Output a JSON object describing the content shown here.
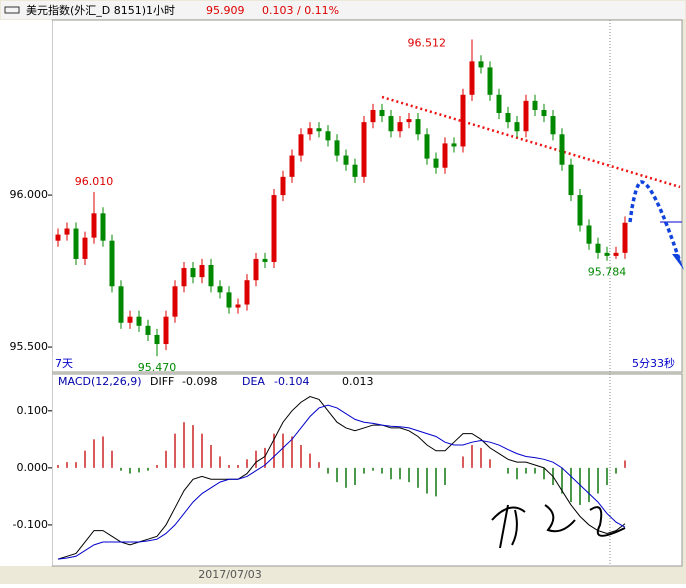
{
  "chart_data": [
    {
      "type": "candlestick",
      "title": "美元指数(外汇_D 8151)1小时",
      "price_label": "95.909",
      "change_label": "0.103 / 0.11%",
      "period_label": "7天",
      "countdown_label": "5分33秒",
      "date_label": "2017/07/03",
      "up_color": "#dd0000",
      "down_color": "#008800",
      "ylim": [
        95.418,
        96.576
      ],
      "yticks": [
        {
          "value": 96.0,
          "label": "96.000"
        },
        {
          "value": 95.5,
          "label": "95.500"
        }
      ],
      "annotations": [
        {
          "value": 96.512,
          "label": "96.512"
        },
        {
          "value": 96.01,
          "label": "96.010"
        },
        {
          "value": 95.47,
          "label": "95.470"
        },
        {
          "value": 95.784,
          "label": "95.784"
        }
      ],
      "open": [
        95.85,
        95.87,
        95.89,
        95.79,
        95.86,
        95.94,
        95.85,
        95.7,
        95.58,
        95.6,
        95.57,
        95.54,
        95.51,
        95.6,
        95.7,
        95.76,
        95.73,
        95.77,
        95.7,
        95.68,
        95.63,
        95.64,
        95.72,
        95.79,
        95.78,
        96.0,
        96.06,
        96.13,
        96.2,
        96.22,
        96.21,
        96.18,
        96.13,
        96.1,
        96.06,
        96.24,
        96.28,
        96.26,
        96.21,
        96.24,
        96.25,
        96.2,
        96.12,
        96.09,
        96.17,
        96.16,
        96.33,
        96.44,
        96.42,
        96.33,
        96.27,
        96.24,
        96.21,
        96.31,
        96.28,
        96.26,
        96.2,
        96.1,
        96.0,
        95.9,
        95.84,
        95.81,
        95.8,
        95.81
      ],
      "high": [
        95.89,
        95.91,
        95.91,
        95.88,
        96.01,
        95.96,
        95.87,
        95.72,
        95.62,
        95.62,
        95.59,
        95.56,
        95.62,
        95.72,
        95.78,
        95.78,
        95.79,
        95.79,
        95.72,
        95.7,
        95.66,
        95.74,
        95.81,
        95.81,
        96.02,
        96.08,
        96.15,
        96.22,
        96.24,
        96.24,
        96.23,
        96.2,
        96.15,
        96.12,
        96.26,
        96.3,
        96.3,
        96.28,
        96.26,
        96.27,
        96.27,
        96.22,
        96.14,
        96.19,
        96.19,
        96.35,
        96.512,
        96.46,
        96.44,
        96.35,
        96.29,
        96.26,
        96.33,
        96.33,
        96.3,
        96.28,
        96.22,
        96.12,
        96.02,
        95.92,
        95.86,
        95.83,
        95.83,
        95.93
      ],
      "low": [
        95.83,
        95.85,
        95.77,
        95.77,
        95.84,
        95.83,
        95.68,
        95.56,
        95.56,
        95.55,
        95.52,
        95.47,
        95.49,
        95.58,
        95.68,
        95.71,
        95.71,
        95.68,
        95.66,
        95.61,
        95.61,
        95.62,
        95.7,
        95.76,
        95.76,
        95.98,
        96.04,
        96.11,
        96.18,
        96.19,
        96.16,
        96.11,
        96.08,
        96.04,
        96.04,
        96.22,
        96.24,
        96.19,
        96.19,
        96.22,
        96.18,
        96.1,
        96.07,
        96.07,
        96.14,
        96.14,
        96.31,
        96.4,
        96.31,
        96.25,
        96.22,
        96.19,
        96.19,
        96.26,
        96.24,
        96.18,
        96.08,
        95.98,
        95.88,
        95.82,
        95.79,
        95.784,
        95.79,
        95.79
      ],
      "close": [
        95.87,
        95.89,
        95.79,
        95.86,
        95.94,
        95.85,
        95.7,
        95.58,
        95.6,
        95.57,
        95.54,
        95.51,
        95.6,
        95.7,
        95.76,
        95.73,
        95.77,
        95.7,
        95.68,
        95.63,
        95.64,
        95.72,
        95.79,
        95.78,
        96.0,
        96.06,
        96.13,
        96.2,
        96.22,
        96.21,
        96.18,
        96.13,
        96.1,
        96.06,
        96.24,
        96.28,
        96.26,
        96.21,
        96.24,
        96.25,
        96.2,
        96.12,
        96.09,
        96.17,
        96.16,
        96.33,
        96.44,
        96.42,
        96.33,
        96.27,
        96.24,
        96.21,
        96.31,
        96.28,
        96.26,
        96.2,
        96.1,
        96.0,
        95.9,
        95.84,
        95.81,
        95.8,
        95.81,
        95.909
      ]
    },
    {
      "type": "macd",
      "title": "MACD(12,26,9)",
      "ylim": [
        -0.172,
        0.161
      ],
      "yticks": [
        {
          "value": 0.1,
          "label": "0.100"
        },
        {
          "value": 0.0,
          "label": "0.000"
        },
        {
          "value": -0.1,
          "label": "-0.100"
        }
      ],
      "histogram": {
        "name": "MACD",
        "value_label": "0.013",
        "up_color": "#cc2222",
        "down_color": "#117711",
        "values": [
          0.005,
          0.01,
          0.01,
          0.03,
          0.05,
          0.055,
          0.03,
          -0.005,
          -0.01,
          -0.008,
          -0.005,
          0.005,
          0.03,
          0.06,
          0.08,
          0.075,
          0.06,
          0.04,
          0.02,
          0.005,
          0.005,
          0.015,
          0.03,
          0.035,
          0.06,
          0.06,
          0.055,
          0.04,
          0.025,
          0.01,
          -0.01,
          -0.025,
          -0.035,
          -0.03,
          -0.01,
          -0.005,
          -0.01,
          -0.02,
          -0.02,
          -0.025,
          -0.035,
          -0.045,
          -0.05,
          -0.03,
          0.0,
          0.02,
          0.04,
          0.035,
          0.015,
          0.0,
          -0.01,
          -0.02,
          -0.01,
          -0.01,
          -0.02,
          -0.03,
          -0.045,
          -0.06,
          -0.065,
          -0.06,
          -0.045,
          -0.03,
          -0.01,
          0.013
        ]
      },
      "series": [
        {
          "name": "DIFF",
          "value_label": "-0.098",
          "color": "#000000",
          "values": [
            -0.16,
            -0.155,
            -0.15,
            -0.13,
            -0.11,
            -0.11,
            -0.12,
            -0.13,
            -0.135,
            -0.13,
            -0.125,
            -0.12,
            -0.1,
            -0.07,
            -0.04,
            -0.02,
            -0.015,
            -0.02,
            -0.02,
            -0.02,
            -0.02,
            -0.01,
            0.01,
            0.02,
            0.05,
            0.08,
            0.1,
            0.115,
            0.125,
            0.12,
            0.1,
            0.08,
            0.07,
            0.065,
            0.07,
            0.075,
            0.075,
            0.07,
            0.07,
            0.065,
            0.055,
            0.04,
            0.03,
            0.03,
            0.045,
            0.06,
            0.06,
            0.05,
            0.035,
            0.025,
            0.015,
            0.01,
            0.01,
            0.005,
            0.0,
            -0.015,
            -0.04,
            -0.065,
            -0.085,
            -0.1,
            -0.11,
            -0.115,
            -0.11,
            -0.098
          ]
        },
        {
          "name": "DEA",
          "value_label": "-0.104",
          "color": "#0000cc",
          "values": [
            -0.16,
            -0.158,
            -0.155,
            -0.145,
            -0.135,
            -0.13,
            -0.13,
            -0.13,
            -0.13,
            -0.13,
            -0.128,
            -0.125,
            -0.115,
            -0.1,
            -0.08,
            -0.06,
            -0.045,
            -0.035,
            -0.025,
            -0.02,
            -0.02,
            -0.015,
            -0.005,
            0.005,
            0.02,
            0.035,
            0.05,
            0.07,
            0.09,
            0.105,
            0.11,
            0.105,
            0.095,
            0.085,
            0.08,
            0.078,
            0.075,
            0.073,
            0.072,
            0.07,
            0.065,
            0.06,
            0.055,
            0.045,
            0.04,
            0.04,
            0.045,
            0.048,
            0.045,
            0.04,
            0.032,
            0.025,
            0.02,
            0.018,
            0.015,
            0.01,
            0.0,
            -0.015,
            -0.03,
            -0.045,
            -0.06,
            -0.08,
            -0.095,
            -0.104
          ]
        }
      ]
    }
  ]
}
